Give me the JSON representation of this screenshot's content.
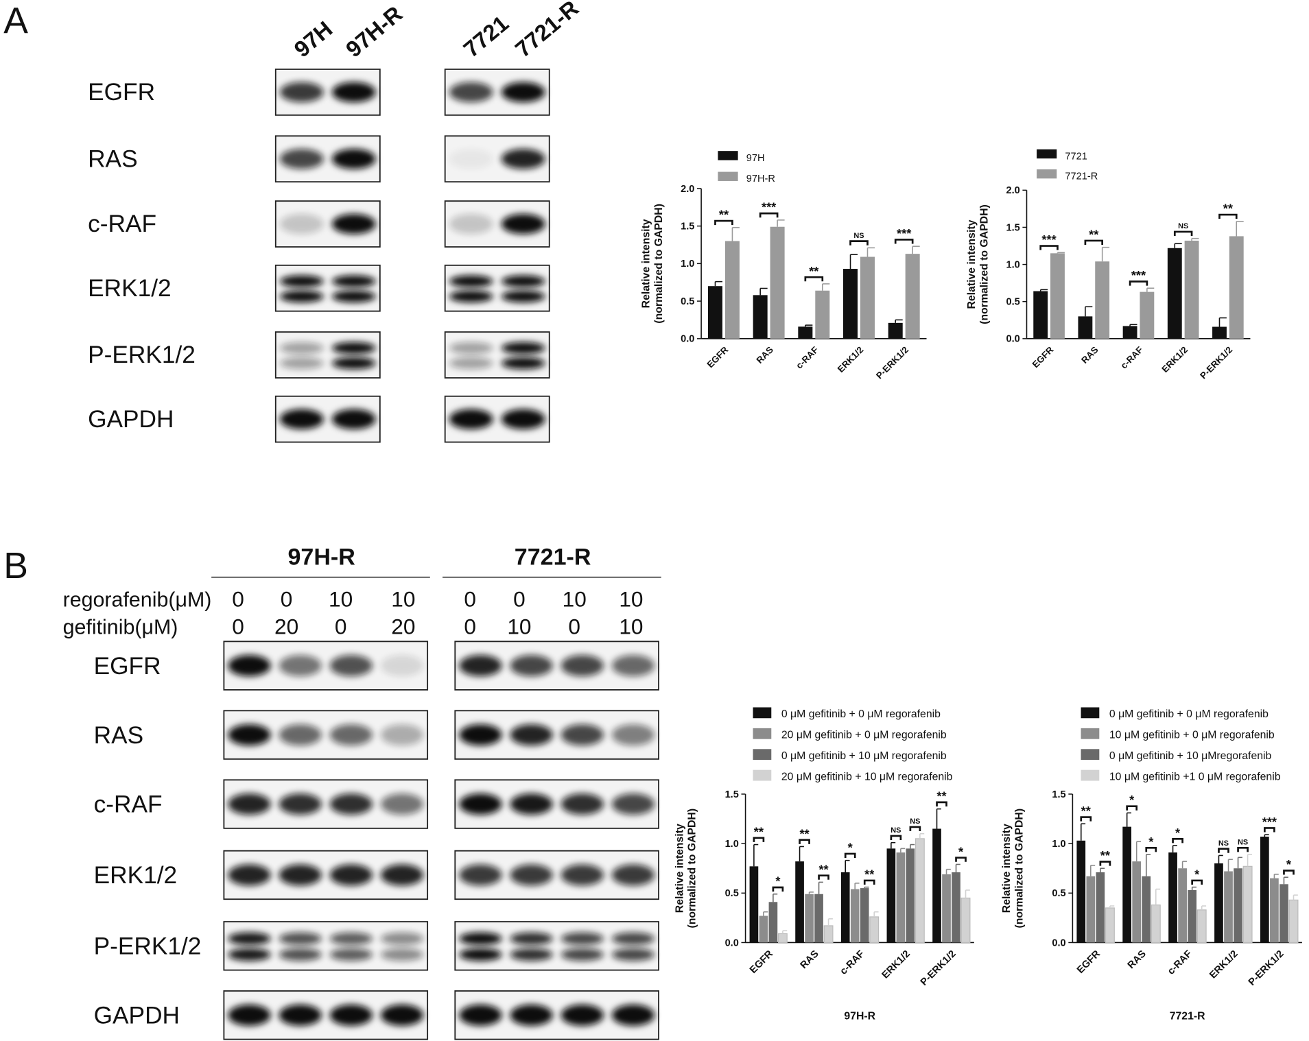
{
  "panel_labels": [
    "A",
    "B"
  ],
  "blots_a": {
    "groups": [
      {
        "lanes": [
          "97H",
          "97H-R"
        ]
      },
      {
        "lanes": [
          "7721",
          "7721-R"
        ]
      }
    ],
    "rows": [
      "EGFR",
      "RAS",
      "c-RAF",
      "ERK1/2",
      "P-ERK1/2",
      "GAPDH"
    ]
  },
  "blots_b": {
    "row_labels": [
      "regorafenib(μM)",
      "gefitinib(μM)"
    ],
    "groups": [
      {
        "title": "97H-R",
        "regorafenib": [
          0,
          0,
          10,
          10
        ],
        "gefitinib": [
          0,
          20,
          0,
          20
        ]
      },
      {
        "title": "7721-R",
        "regorafenib": [
          0,
          0,
          10,
          10
        ],
        "gefitinib": [
          0,
          10,
          0,
          10
        ]
      }
    ],
    "rows": [
      "EGFR",
      "RAS",
      "c-RAF",
      "ERK1/2",
      "P-ERK1/2",
      "GAPDH"
    ]
  },
  "chart_data": [
    {
      "type": "bar",
      "y_label": [
        "Relative    intensity",
        "(normalized to GAPDH)"
      ],
      "legend": "top",
      "categories": [
        "EGFR",
        "RAS",
        "c-RAF",
        "ERK1/2",
        "P-ERK1/2"
      ],
      "series": [
        {
          "name": "97H",
          "color": "#111111",
          "values": [
            0.7,
            0.58,
            0.16,
            0.93,
            0.21
          ],
          "errors": [
            0.06,
            0.09,
            0.02,
            0.19,
            0.04
          ]
        },
        {
          "name": "97H-R",
          "color": "#9a9a9a",
          "values": [
            1.3,
            1.49,
            0.64,
            1.09,
            1.13
          ],
          "errors": [
            0.18,
            0.09,
            0.09,
            0.12,
            0.1
          ]
        }
      ],
      "significance": [
        "**",
        "***",
        "**",
        "NS",
        "***"
      ],
      "ylim": [
        0,
        2
      ],
      "yticks": [
        {
          "value": 0,
          "label": "0.0"
        },
        {
          "value": 0.5,
          "label": "0.5"
        },
        {
          "value": 1,
          "label": "1.0"
        },
        {
          "value": 1.5,
          "label": "1.5"
        },
        {
          "value": 2,
          "label": "2.0"
        }
      ]
    },
    {
      "type": "bar",
      "y_label": [
        "Relative    intensity",
        "(normalized to GAPDH)"
      ],
      "legend": "top",
      "categories": [
        "EGFR",
        "RAS",
        "c-RAF",
        "ERK1/2",
        "P-ERK1/2"
      ],
      "series": [
        {
          "name": "7721",
          "color": "#111111",
          "values": [
            0.64,
            0.3,
            0.17,
            1.22,
            0.16
          ],
          "errors": [
            0.02,
            0.13,
            0.02,
            0.06,
            0.12
          ]
        },
        {
          "name": "7721-R",
          "color": "#9a9a9a",
          "values": [
            1.15,
            1.04,
            0.63,
            1.32,
            1.38
          ],
          "errors": [
            0.01,
            0.19,
            0.05,
            0.03,
            0.2
          ]
        }
      ],
      "significance": [
        "***",
        "**",
        "***",
        "NS",
        "**"
      ],
      "ylim": [
        0,
        2
      ],
      "yticks": [
        {
          "value": 0,
          "label": "0.0"
        },
        {
          "value": 0.5,
          "label": "0.5"
        },
        {
          "value": 1,
          "label": "1.0"
        },
        {
          "value": 1.5,
          "label": "1.5"
        },
        {
          "value": 2,
          "label": "2.0"
        }
      ]
    },
    {
      "type": "bar",
      "y_label": [
        "Relative    intensity",
        "(normalized to GAPDH)"
      ],
      "x_label": "97H-R",
      "legend": "top",
      "categories": [
        "EGFR",
        "RAS",
        "c-RAF",
        "ERK1/2",
        "P-ERK1/2"
      ],
      "series": [
        {
          "name": "0 μM gefitinib + 0 μM regorafenib",
          "color": "#111111",
          "values": [
            0.77,
            0.82,
            0.71,
            0.95,
            1.15
          ],
          "errors": [
            0.22,
            0.15,
            0.12,
            0.06,
            0.2
          ]
        },
        {
          "name": "20 μM gefitinib + 0 μM regorafenib",
          "color": "#8c8c8c",
          "values": [
            0.27,
            0.49,
            0.54,
            0.91,
            0.69
          ],
          "errors": [
            0.04,
            0.02,
            0.06,
            0.04,
            0.05
          ]
        },
        {
          "name": "0 μM gefitinib + 10 μM regorafenib",
          "color": "#6a6a6a",
          "values": [
            0.41,
            0.49,
            0.55,
            0.95,
            0.71
          ],
          "errors": [
            0.08,
            0.12,
            0.01,
            0.04,
            0.08
          ]
        },
        {
          "name": "20 μM gefitinib + 10 μM regorafenib",
          "color": "#d2d2d2",
          "values": [
            0.09,
            0.17,
            0.26,
            1.05,
            0.45
          ],
          "errors": [
            0.03,
            0.07,
            0.05,
            0.05,
            0.08
          ]
        }
      ],
      "significance": [
        [
          "**",
          "*"
        ],
        [
          "**",
          "**"
        ],
        [
          "*",
          "**"
        ],
        [
          "NS",
          "NS"
        ],
        [
          "**",
          "*"
        ]
      ],
      "ylim": [
        0,
        1.5
      ],
      "yticks": [
        {
          "value": 0,
          "label": "0.0"
        },
        {
          "value": 0.5,
          "label": "0.5"
        },
        {
          "value": 1,
          "label": "1.0"
        },
        {
          "value": 1.5,
          "label": "1.5"
        }
      ]
    },
    {
      "type": "bar",
      "y_label": [
        "Relative    intensity",
        "(normalized to GAPDH)"
      ],
      "x_label": "7721-R",
      "legend": "top",
      "categories": [
        "EGFR",
        "RAS",
        "c-RAF",
        "ERK1/2",
        "P-ERK1/2"
      ],
      "series": [
        {
          "name": "0 μM gefitinib + 0 μM regorafenib",
          "color": "#111111",
          "values": [
            1.03,
            1.17,
            0.91,
            0.8,
            1.07
          ],
          "errors": [
            0.17,
            0.14,
            0.07,
            0.08,
            0.02
          ]
        },
        {
          "name": "10 μM gefitinib + 0 μM regorafenib",
          "color": "#8c8c8c",
          "values": [
            0.67,
            0.82,
            0.75,
            0.72,
            0.65
          ],
          "errors": [
            0.11,
            0.2,
            0.07,
            0.12,
            0.04
          ]
        },
        {
          "name": "0 μM gefitinib + 10 μMregorafenib",
          "color": "#6a6a6a",
          "values": [
            0.71,
            0.67,
            0.53,
            0.75,
            0.59
          ],
          "errors": [
            0.04,
            0.22,
            0.03,
            0.11,
            0.07
          ]
        },
        {
          "name": "10 μM gefitinib +1 0 μM regorafenib",
          "color": "#d2d2d2",
          "values": [
            0.35,
            0.38,
            0.33,
            0.77,
            0.43
          ],
          "errors": [
            0.02,
            0.16,
            0.04,
            0.12,
            0.05
          ]
        }
      ],
      "significance": [
        [
          "**",
          "**"
        ],
        [
          "*",
          "*"
        ],
        [
          "*",
          "*"
        ],
        [
          "NS",
          "NS"
        ],
        [
          "***",
          "*"
        ]
      ],
      "ylim": [
        0,
        1.5
      ],
      "yticks": [
        {
          "value": 0,
          "label": "0.0"
        },
        {
          "value": 0.5,
          "label": "0.5"
        },
        {
          "value": 1,
          "label": "1.0"
        },
        {
          "value": 1.5,
          "label": "1.5"
        }
      ]
    }
  ]
}
